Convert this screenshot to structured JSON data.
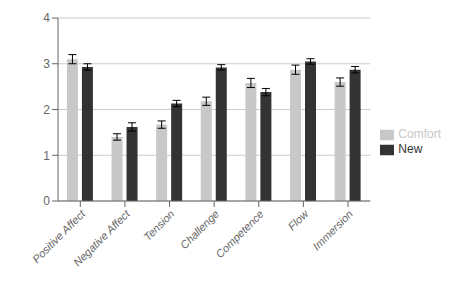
{
  "chart_data": {
    "type": "bar",
    "categories": [
      "Positive Affect",
      "Negative Affect",
      "Tension",
      "Challenge",
      "Competence",
      "Flow",
      "Immersion"
    ],
    "series": [
      {
        "name": "Comfort",
        "color": "#c8c8c8",
        "values": [
          3.1,
          1.4,
          1.67,
          2.18,
          2.58,
          2.87,
          2.6
        ],
        "errors": [
          0.1,
          0.07,
          0.08,
          0.09,
          0.1,
          0.1,
          0.09
        ]
      },
      {
        "name": "New",
        "color": "#333333",
        "values": [
          2.93,
          1.62,
          2.13,
          2.92,
          2.38,
          3.05,
          2.87
        ],
        "errors": [
          0.07,
          0.09,
          0.07,
          0.06,
          0.08,
          0.06,
          0.07
        ]
      }
    ],
    "ylim": [
      0,
      4
    ],
    "yticks": [
      0,
      1,
      2,
      3,
      4
    ],
    "grid": true,
    "legend": "right"
  }
}
